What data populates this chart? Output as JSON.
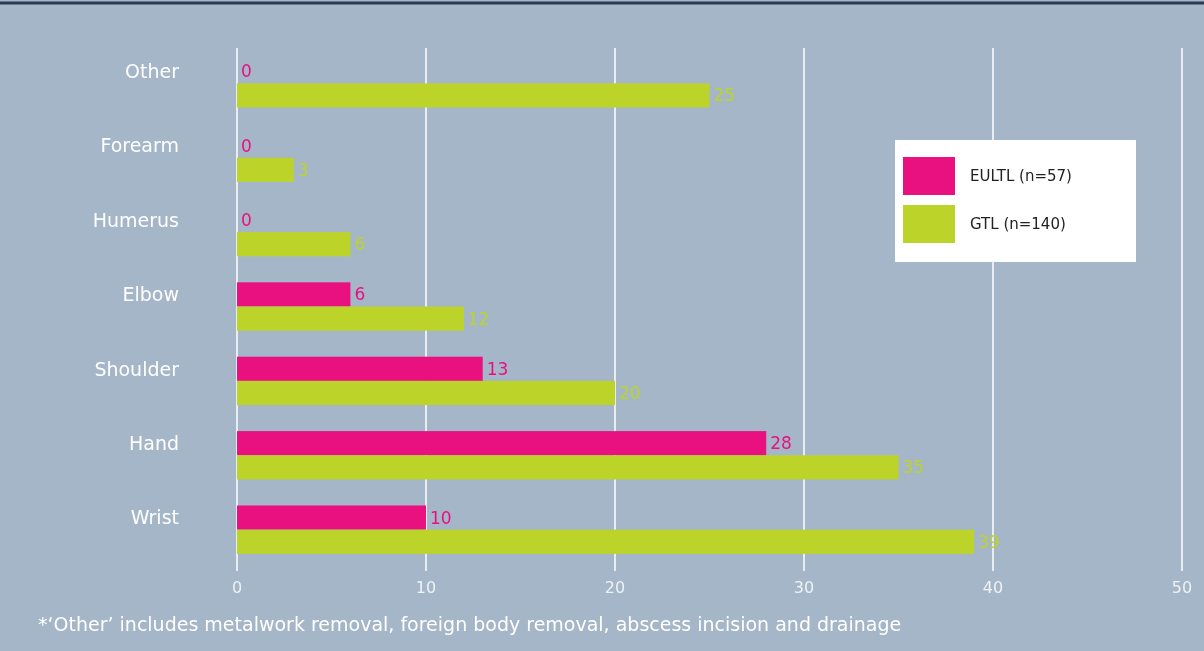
{
  "chart_data": {
    "type": "bar",
    "orientation": "horizontal",
    "categories": [
      "Other",
      "Forearm",
      "Humerus",
      "Elbow",
      "Shoulder",
      "Hand",
      "Wrist"
    ],
    "series": [
      {
        "name": "EULTL (n=57)",
        "color": "#e8117f",
        "values": [
          0,
          0,
          0,
          6,
          13,
          28,
          10
        ]
      },
      {
        "name": "GTL (n=140)",
        "color": "#bcd42a",
        "values": [
          25,
          3,
          6,
          12,
          20,
          35,
          39
        ]
      }
    ],
    "xlim": [
      0,
      50
    ],
    "xticks": [
      0,
      10,
      20,
      30,
      40,
      50
    ],
    "grid": "x",
    "legend": "top right",
    "data_labels": true,
    "annotations": [
      "*‘Other’ includes metalwork removal, foreign body removal, abscess incision and drainage"
    ]
  }
}
